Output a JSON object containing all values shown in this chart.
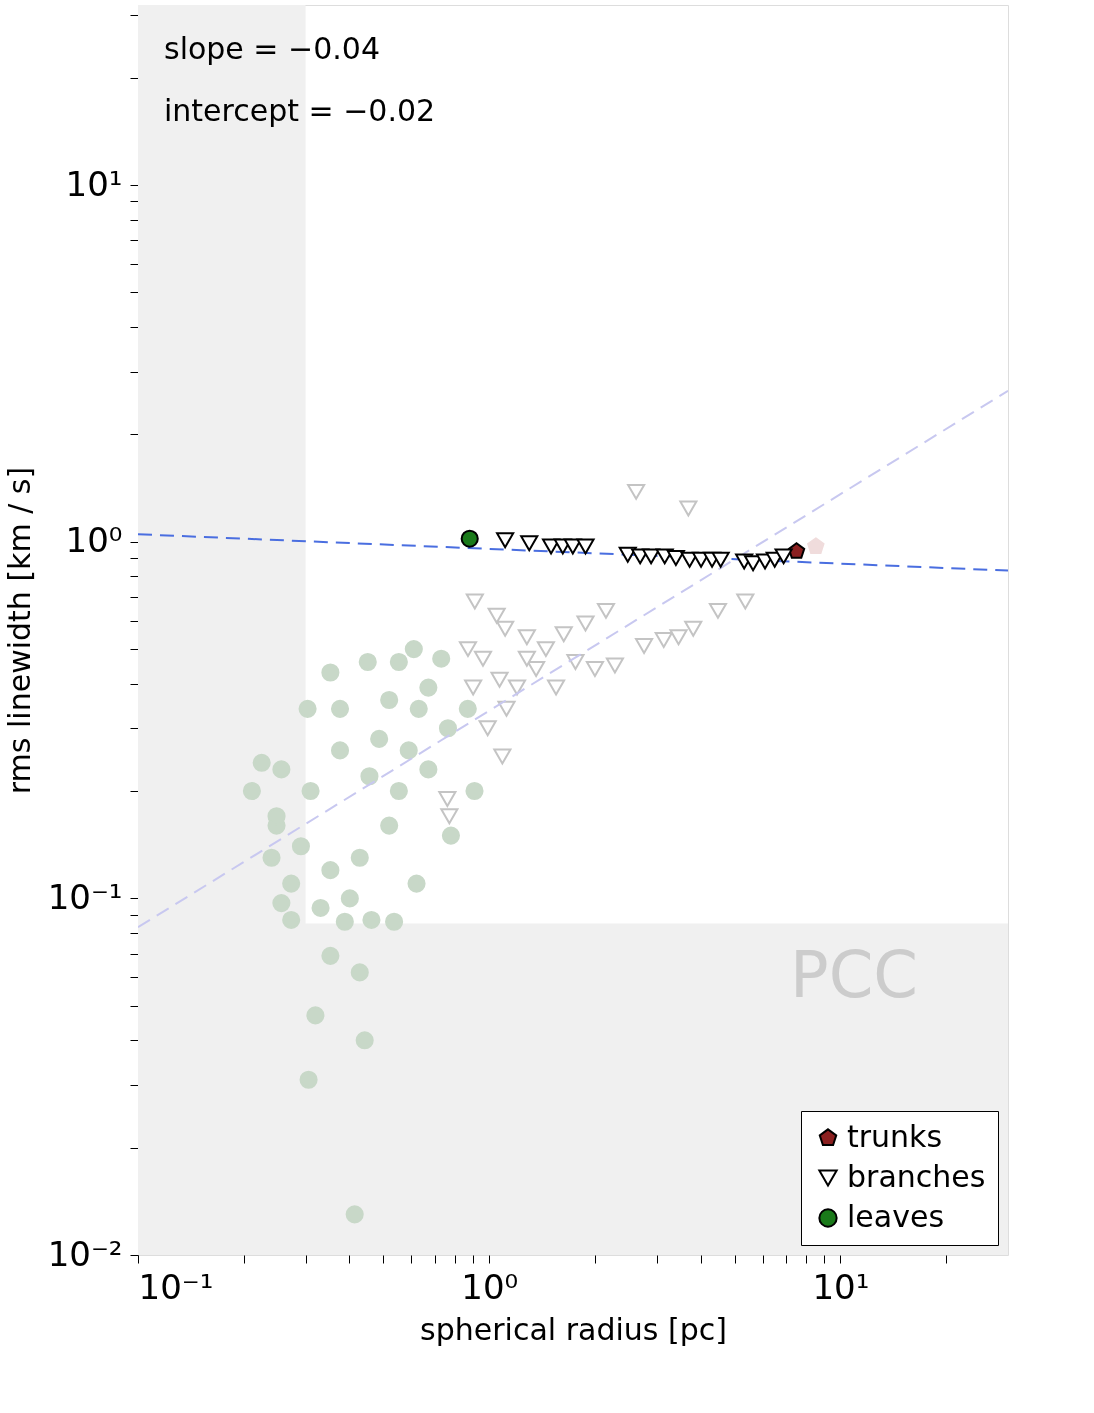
{
  "chart_data": {
    "type": "scatter",
    "xlabel": "spherical radius [pc]",
    "ylabel": "rms linewidth [km / s]",
    "annotations": [
      "slope = −0.04",
      "intercept = −0.02"
    ],
    "xlim": [
      0.1,
      30
    ],
    "ylim": [
      0.01,
      32
    ],
    "xticks": [
      {
        "value": 0.1,
        "label": "10⁻¹"
      },
      {
        "value": 0.2,
        "label": null
      },
      {
        "value": 0.3,
        "label": null
      },
      {
        "value": 0.4,
        "label": null
      },
      {
        "value": 0.5,
        "label": null
      },
      {
        "value": 0.6,
        "label": null
      },
      {
        "value": 0.7,
        "label": null
      },
      {
        "value": 0.8,
        "label": null
      },
      {
        "value": 0.9,
        "label": null
      },
      {
        "value": 1,
        "label": "10⁰"
      },
      {
        "value": 2,
        "label": null
      },
      {
        "value": 3,
        "label": null
      },
      {
        "value": 4,
        "label": null
      },
      {
        "value": 5,
        "label": null
      },
      {
        "value": 6,
        "label": null
      },
      {
        "value": 7,
        "label": null
      },
      {
        "value": 8,
        "label": null
      },
      {
        "value": 9,
        "label": null
      },
      {
        "value": 10,
        "label": "10¹"
      },
      {
        "value": 20,
        "label": null
      }
    ],
    "yticks": [
      {
        "value": 0.01,
        "label": "10⁻²"
      },
      {
        "value": 0.02,
        "label": null
      },
      {
        "value": 0.03,
        "label": null
      },
      {
        "value": 0.04,
        "label": null
      },
      {
        "value": 0.05,
        "label": null
      },
      {
        "value": 0.06,
        "label": null
      },
      {
        "value": 0.07,
        "label": null
      },
      {
        "value": 0.08,
        "label": null
      },
      {
        "value": 0.09,
        "label": null
      },
      {
        "value": 0.1,
        "label": "10⁻¹"
      },
      {
        "value": 0.2,
        "label": null
      },
      {
        "value": 0.3,
        "label": null
      },
      {
        "value": 0.4,
        "label": null
      },
      {
        "value": 0.5,
        "label": null
      },
      {
        "value": 0.6,
        "label": null
      },
      {
        "value": 0.7,
        "label": null
      },
      {
        "value": 0.8,
        "label": null
      },
      {
        "value": 0.9,
        "label": null
      },
      {
        "value": 1,
        "label": "10⁰"
      },
      {
        "value": 2,
        "label": null
      },
      {
        "value": 3,
        "label": null
      },
      {
        "value": 4,
        "label": null
      },
      {
        "value": 5,
        "label": null
      },
      {
        "value": 6,
        "label": null
      },
      {
        "value": 7,
        "label": null
      },
      {
        "value": 8,
        "label": null
      },
      {
        "value": 9,
        "label": null
      },
      {
        "value": 10,
        "label": "10¹"
      },
      {
        "value": 20,
        "label": null
      },
      {
        "value": 30,
        "label": null
      }
    ],
    "log": "xy",
    "grid": false,
    "legend": "bottom right",
    "bands": [
      {
        "axis": "x",
        "from": 0.1,
        "to": 0.3,
        "color": "#f0f0f0"
      },
      {
        "axis": "y",
        "from": 0.01,
        "to": 0.085,
        "label": "PCC",
        "color": "#f0f0f0"
      }
    ],
    "series": [
      {
        "marker": "circle",
        "color": "#c8d8c8",
        "x": [
          0.353,
          0.451,
          0.553,
          0.61,
          0.73,
          0.671,
          0.763,
          0.869,
          0.908,
          0.778,
          0.621,
          0.536,
          0.462,
          0.428,
          0.442,
          0.306,
          0.414,
          0.32,
          0.353,
          0.273,
          0.256,
          0.225,
          0.211,
          0.248,
          0.304,
          0.31,
          0.376,
          0.456,
          0.519,
          0.428,
          0.353,
          0.291,
          0.24,
          0.273,
          0.401,
          0.486,
          0.59,
          0.553,
          0.671,
          0.376,
          0.256,
          0.331,
          0.388,
          0.248,
          0.63,
          0.519
        ],
        "values": [
          0.43,
          0.46,
          0.46,
          0.5,
          0.47,
          0.39,
          0.3,
          0.34,
          0.2,
          0.15,
          0.11,
          0.086,
          0.087,
          0.062,
          0.04,
          0.031,
          0.013,
          0.047,
          0.069,
          0.087,
          0.097,
          0.24,
          0.2,
          0.16,
          0.34,
          0.2,
          0.26,
          0.22,
          0.16,
          0.13,
          0.12,
          0.14,
          0.13,
          0.11,
          0.1,
          0.28,
          0.26,
          0.2,
          0.23,
          0.34,
          0.23,
          0.094,
          0.086,
          0.17,
          0.34,
          0.36
        ]
      },
      {
        "marker": "triangle",
        "color": "#c4c4c4",
        "x": [
          2.62,
          3.69,
          0.91,
          1.05,
          1.11,
          1.28,
          1.45,
          1.63,
          1.88,
          2.15,
          2.76,
          3.14,
          3.46,
          3.81,
          4.48,
          5.36,
          0.87,
          0.96,
          1.07,
          1.2,
          1.36,
          1.55,
          1.76,
          1.12,
          0.99,
          1.09,
          0.9,
          0.76,
          0.77,
          1.28,
          2.28,
          2.0
        ],
        "values": [
          1.38,
          1.24,
          0.68,
          0.62,
          0.57,
          0.54,
          0.5,
          0.55,
          0.59,
          0.64,
          0.51,
          0.53,
          0.54,
          0.57,
          0.64,
          0.68,
          0.5,
          0.47,
          0.41,
          0.39,
          0.44,
          0.39,
          0.46,
          0.34,
          0.3,
          0.25,
          0.39,
          0.19,
          0.17,
          0.47,
          0.45,
          0.44
        ]
      },
      {
        "color": "#f0dcdc",
        "x": [
          8.51
        ],
        "values": [
          0.97
        ]
      },
      {
        "type": "line",
        "color": "#c8c8f0",
        "line_style": "dashed",
        "x": [
          0.1,
          30
        ],
        "values": [
          0.083,
          2.65
        ]
      },
      {
        "type": "line",
        "color": "#4a6ee0",
        "line_style": "dashed",
        "x": [
          0.1,
          30
        ],
        "values": [
          1.05,
          0.83
        ]
      },
      {
        "name": "trunks",
        "color": "#8b2020",
        "x": [
          7.5
        ],
        "values": [
          0.94
        ]
      },
      {
        "name": "branches",
        "marker": "triangle",
        "color": "#000000",
        "x": [
          1.11,
          1.3,
          1.5,
          1.62,
          1.73,
          1.88,
          2.48,
          2.69,
          2.89,
          3.16,
          3.4,
          3.72,
          4.01,
          4.31,
          4.56,
          5.32,
          5.64,
          6.1,
          6.5,
          6.89
        ],
        "values": [
          1.01,
          0.99,
          0.97,
          0.97,
          0.97,
          0.97,
          0.92,
          0.91,
          0.91,
          0.91,
          0.9,
          0.89,
          0.89,
          0.89,
          0.89,
          0.88,
          0.87,
          0.88,
          0.89,
          0.91
        ]
      },
      {
        "name": "leaves",
        "marker": "circle",
        "color": "#1a7a1a",
        "x": [
          0.88
        ],
        "values": [
          1.02
        ]
      }
    ]
  }
}
